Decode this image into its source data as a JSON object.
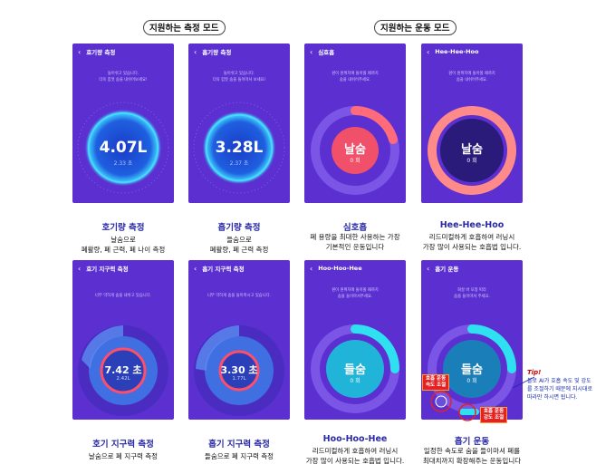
{
  "sections": {
    "measure": "지원하는 측정 모드",
    "exercise": "지원하는 운동 모드"
  },
  "phones": {
    "inhale_volume": {
      "title": "호기량 측정",
      "instruction": "들이쉬고 있습니다.\n더욱 힘껏 숨을 내쉬어보세요!",
      "value": "4.07L",
      "sub": "2.33 초"
    },
    "exhale_volume": {
      "title": "흡기량 측정",
      "instruction": "들이쉬고 있습니다.\n더욱 힘껏 숨을 들이마셔 보세요!",
      "value": "3.28L",
      "sub": "2.37 초"
    },
    "deep_breath": {
      "title": "심호흡",
      "instruction": "원이 원위치에 돌아올 때까지\n숨을 내쉬어주세요.",
      "value": "날숨",
      "sub": "0 회"
    },
    "hee_hee_hoo": {
      "title": "Hee-Hee-Hoo",
      "instruction": "원이 원위치에 돌아올 때까지\n숨을 내쉬어주세요.",
      "value": "날숨",
      "sub": "0 회"
    },
    "exhale_endurance": {
      "title": "호기 지구력 측정",
      "instruction": "너무 약하게 숨을 내쉬고 있습니다.",
      "value": "7.42 초",
      "sub": "2.42L"
    },
    "inhale_endurance": {
      "title": "흡기 지구력 측정",
      "instruction": "너무 약하게 숨을 들이마시고 있습니다.",
      "value": "3.30 초",
      "sub": "1.77L"
    },
    "hoo_hoo_hee": {
      "title": "Hoo-Hoo-Hee",
      "instruction": "원이 원위치에 돌아올 때까지\n숨을 들이마셔주세요.",
      "value": "들숨",
      "sub": "0 회"
    },
    "inhale_exercise": {
      "title": "흡기 운동",
      "instruction": "화살 바 모형 따라\n숨을 들이마셔 주세요.",
      "value": "들숨",
      "sub": "0 회"
    }
  },
  "captions": {
    "inhale_volume": {
      "title": "호기량 측정",
      "desc": [
        "날숨으로",
        "폐활량, 폐 근력, 폐 나이 측정"
      ]
    },
    "exhale_volume": {
      "title": "흡기량 측정",
      "desc": [
        "들숨으로",
        "폐활량, 폐 근력 측정"
      ]
    },
    "deep_breath": {
      "title": "심호흡",
      "desc": [
        "폐 용량을 최대한 사용하는 가장",
        "기본적인 운동입니다"
      ]
    },
    "hee_hee_hoo": {
      "title": "Hee-Hee-Hoo",
      "desc": [
        "리드미컬하게 호흡하여 러닝시",
        "가장 많이 사용되는 호흡법 입니다."
      ]
    },
    "exhale_endurance": {
      "title": "호기 지구력 측정",
      "desc": [
        "날숨으로 폐 지구력 측정"
      ]
    },
    "inhale_endurance": {
      "title": "흡기 지구력 측정",
      "desc": [
        "들숨으로 폐 지구력 측정"
      ]
    },
    "hoo_hoo_hee": {
      "title": "Hoo-Hoo-Hee",
      "desc": [
        "리드미컬하게 호흡하여 러닝시",
        "가장 많이 사용되는 호흡법 입니다."
      ]
    },
    "inhale_exercise": {
      "title": "흡기 운동",
      "desc": [
        "일정한 속도로 숨을 들이마셔 폐를",
        "최대치까지 확장해주는 운동입니다"
      ]
    }
  },
  "callouts": {
    "speed": "호흡 운동\n속도 조절",
    "strength": "호흡 운동\n강도 조절"
  },
  "tip": {
    "title": "Tip!",
    "text": "블로 AI가 호흡 속도 및 강도를 조절하기 때문에 지시대로 따라만 하시면 됩니다."
  },
  "colors": {
    "phone_bg": "#5b2fd0",
    "caption_title": "#2a2aa8",
    "callout_red": "#e52222"
  }
}
